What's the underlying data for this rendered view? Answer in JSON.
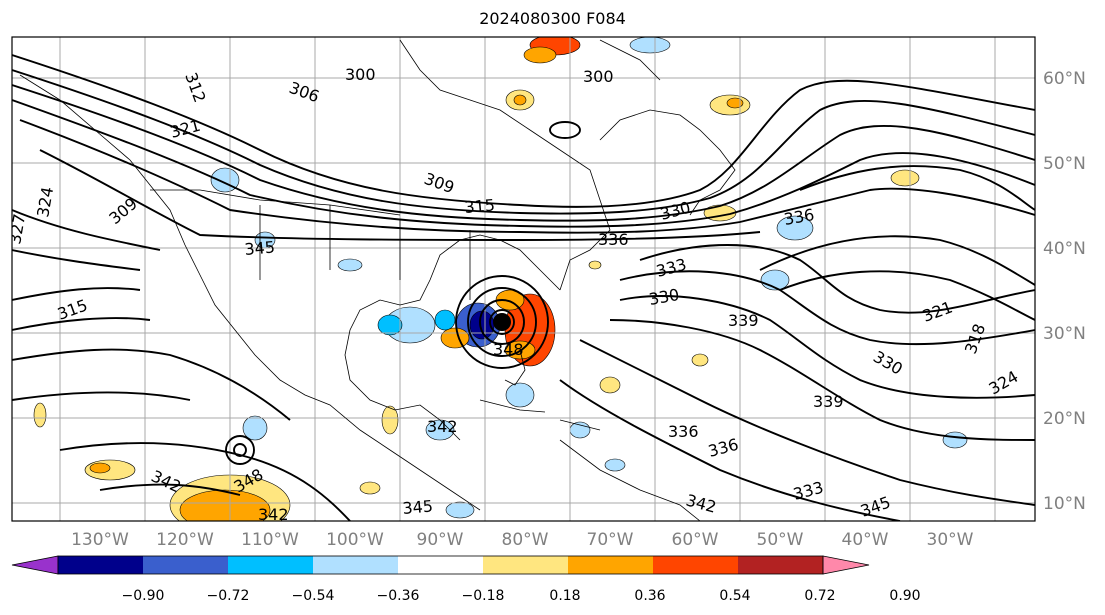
{
  "title": "2024080300 F084",
  "map": {
    "lat_labels": [
      "60°N",
      "50°N",
      "40°N",
      "30°N",
      "20°N",
      "10°N"
    ],
    "lon_labels": [
      "130°W",
      "120°W",
      "110°W",
      "100°W",
      "90°W",
      "80°W",
      "70°W",
      "60°W",
      "50°W",
      "40°W",
      "30°W"
    ],
    "contour_labels": [
      "312",
      "306",
      "300",
      "300",
      "321",
      "324",
      "309",
      "315",
      "330",
      "336",
      "333",
      "345",
      "315",
      "348",
      "330",
      "339",
      "321",
      "318",
      "330",
      "339",
      "342",
      "336",
      "336",
      "342",
      "348",
      "342",
      "345",
      "342",
      "333",
      "345",
      "324",
      "336",
      "327",
      "309"
    ]
  },
  "colorbar": {
    "ticks": [
      "−0.90",
      "−0.72",
      "−0.54",
      "−0.36",
      "−0.18",
      "0.18",
      "0.36",
      "0.54",
      "0.72",
      "0.90"
    ],
    "colors": [
      "#9932cc",
      "#00008b",
      "#3a5fcd",
      "#00bfff",
      "#b0e0ff",
      "#ffffff",
      "#ffe680",
      "#ffa500",
      "#ff4500",
      "#b22222",
      "#ff88aa"
    ]
  }
}
